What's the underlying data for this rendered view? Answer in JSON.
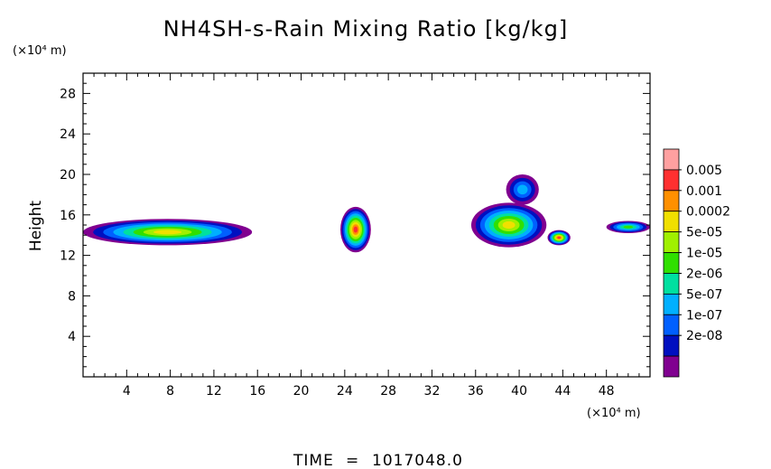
{
  "chart_data": {
    "type": "heatmap",
    "title": "NH4SH-s-Rain Mixing Ratio [kg/kg]",
    "xlabel": "",
    "ylabel": "Height",
    "x_unit_label": "(×10⁴ m)",
    "y_unit_label": "(×10⁴ m)",
    "xlim": [
      0,
      52
    ],
    "ylim": [
      0,
      30
    ],
    "x_ticks": [
      "4",
      "8",
      "12",
      "16",
      "20",
      "24",
      "28",
      "32",
      "36",
      "40",
      "44",
      "48"
    ],
    "y_ticks": [
      "4",
      "8",
      "12",
      "16",
      "20",
      "24",
      "28"
    ],
    "colorbar": {
      "labels": [
        "0.005",
        "0.001",
        "0.0002",
        "5e-05",
        "1e-05",
        "2e-06",
        "5e-07",
        "1e-07",
        "2e-08"
      ],
      "colors_top_to_bottom": [
        "#ffa0a0",
        "#ff3030",
        "#ff9000",
        "#f0e000",
        "#a0f000",
        "#30e000",
        "#00e0a0",
        "#00b0ff",
        "#0060ff",
        "#0010c0",
        "#800090"
      ]
    },
    "features": [
      {
        "x": [
          0,
          15.5
        ],
        "y": [
          13,
          15.6
        ],
        "peak_level": "5e-05"
      },
      {
        "x": [
          23.6,
          26.4
        ],
        "y": [
          12.3,
          16.8
        ],
        "peak_level": "0.001"
      },
      {
        "x": [
          35.6,
          42.5
        ],
        "y": [
          12.8,
          17.2
        ],
        "peak_level": "5e-05"
      },
      {
        "x": [
          38.8,
          41.8
        ],
        "y": [
          17.0,
          20.0
        ],
        "peak_level": "5e-07"
      },
      {
        "x": [
          42.6,
          44.7
        ],
        "y": [
          13.0,
          14.5
        ],
        "peak_level": "0.001"
      },
      {
        "x": [
          48.0,
          52.0
        ],
        "y": [
          14.2,
          15.4
        ],
        "peak_level": "2e-06"
      }
    ]
  },
  "footer": {
    "time_label": "TIME",
    "time_eq": "=",
    "time_value": "1017048.0"
  }
}
